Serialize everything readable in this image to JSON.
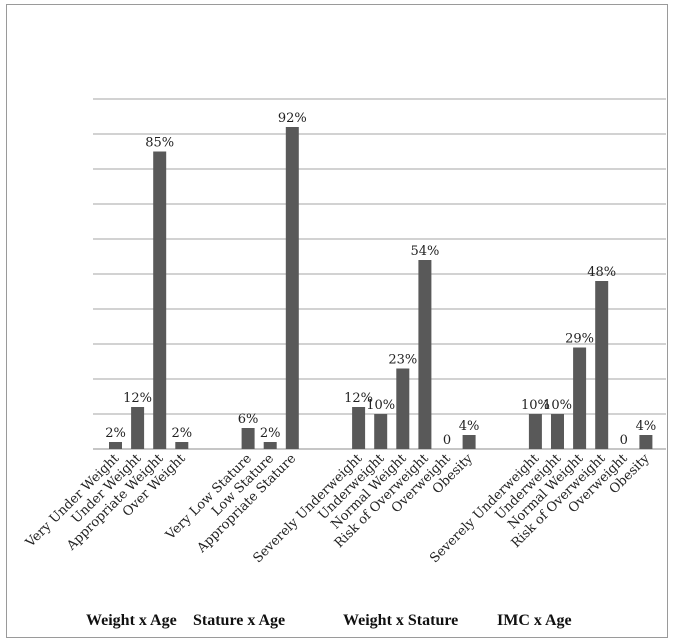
{
  "chart_data": {
    "type": "bar",
    "title": "",
    "xlabel": "",
    "ylabel": "",
    "ylim": [
      0,
      100
    ],
    "grid": true,
    "color": "#595959",
    "groups": [
      {
        "name": "Weight x Age",
        "bars": [
          {
            "label": "Very Under Weight",
            "value": 2,
            "text": "2%"
          },
          {
            "label": "Under Weight",
            "value": 12,
            "text": "12%"
          },
          {
            "label": "Appropriate Weight",
            "value": 85,
            "text": "85%"
          },
          {
            "label": "Over Weight",
            "value": 2,
            "text": "2%"
          }
        ]
      },
      {
        "name": "Stature  x Age",
        "bars": [
          {
            "label": "Very Low Stature",
            "value": 6,
            "text": "6%"
          },
          {
            "label": "Low Stature",
            "value": 2,
            "text": "2%"
          },
          {
            "label": "Appropriate Stature",
            "value": 92,
            "text": "92%"
          }
        ]
      },
      {
        "name": "Weight x Stature",
        "bars": [
          {
            "label": "Severely Underweight",
            "value": 12,
            "text": "12%"
          },
          {
            "label": "Underweight",
            "value": 10,
            "text": "10%"
          },
          {
            "label": "Normal Weight",
            "value": 23,
            "text": "23%"
          },
          {
            "label": "Risk of Overweight",
            "value": 54,
            "text": "54%"
          },
          {
            "label": "Overweight",
            "value": 0,
            "text": "0"
          },
          {
            "label": "Obesity",
            "value": 4,
            "text": "4%"
          }
        ]
      },
      {
        "name": "IMC x Age",
        "bars": [
          {
            "label": "Severely Underweight",
            "value": 10,
            "text": "10%"
          },
          {
            "label": "Underweight",
            "value": 10,
            "text": "10%"
          },
          {
            "label": "Normal Weight",
            "value": 29,
            "text": "29%"
          },
          {
            "label": "Risk of Overweight",
            "value": 48,
            "text": "48%"
          },
          {
            "label": "Overweight",
            "value": 0,
            "text": "0"
          },
          {
            "label": "Obesity",
            "value": 4,
            "text": "4%"
          }
        ]
      }
    ]
  }
}
